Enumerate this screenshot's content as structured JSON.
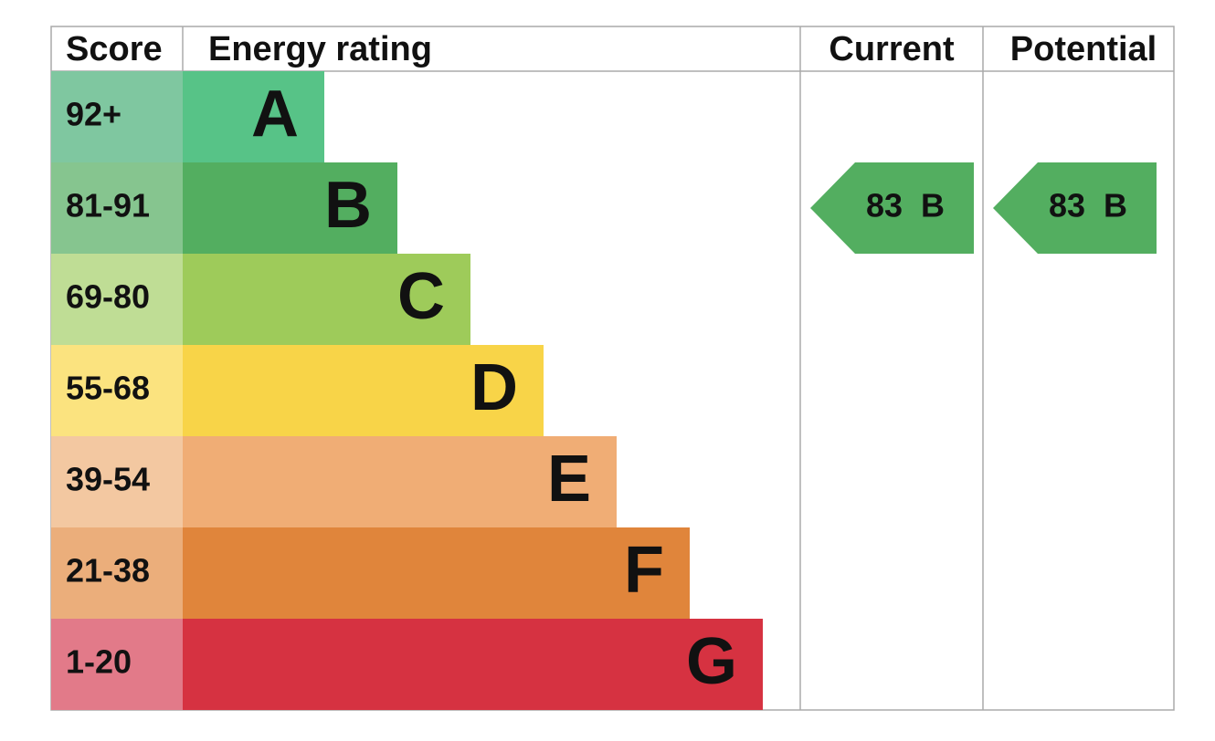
{
  "header": {
    "score": "Score",
    "energy_rating": "Energy rating",
    "current": "Current",
    "potential": "Potential"
  },
  "bands": [
    {
      "score": "92+",
      "letter": "A",
      "color": "#57c387",
      "score_color": "#7fc7a0"
    },
    {
      "score": "81-91",
      "letter": "B",
      "color": "#53ae60",
      "score_color": "#86c58f"
    },
    {
      "score": "69-80",
      "letter": "C",
      "color": "#9ecb5a",
      "score_color": "#bfdd95"
    },
    {
      "score": "55-68",
      "letter": "D",
      "color": "#f8d448",
      "score_color": "#fbe37f"
    },
    {
      "score": "39-54",
      "letter": "E",
      "color": "#f0ad75",
      "score_color": "#f3c8a1"
    },
    {
      "score": "21-38",
      "letter": "F",
      "color": "#e0853b",
      "score_color": "#ebae7b"
    },
    {
      "score": "1-20",
      "letter": "G",
      "color": "#d63241",
      "score_color": "#e27a89"
    }
  ],
  "current": {
    "value": "83",
    "band": "B"
  },
  "potential": {
    "value": "83",
    "band": "B"
  }
}
